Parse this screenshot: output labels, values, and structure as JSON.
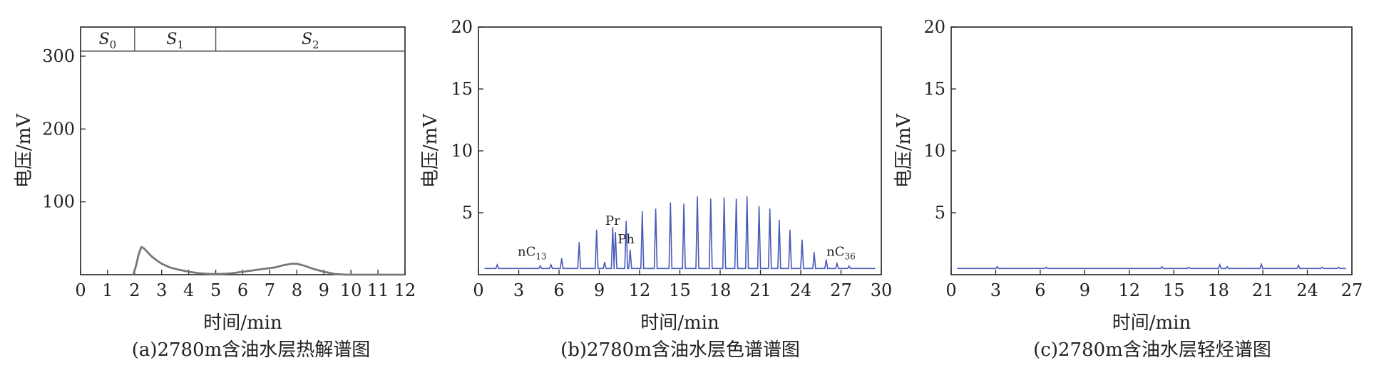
{
  "chart_data": [
    {
      "type": "line",
      "caption": "(a)2780m含油水层热解谱图",
      "xlabel": "时间/min",
      "ylabel": "电压/mV",
      "xlim": [
        0,
        12
      ],
      "ylim": [
        0,
        340
      ],
      "x_ticks": [
        "0",
        "1",
        "2",
        "3",
        "4",
        "5",
        "6",
        "7",
        "8",
        "9",
        "10",
        "11",
        "12"
      ],
      "y_ticks": [
        "100",
        "200",
        "300"
      ],
      "y_tick_values": [
        100,
        200,
        300
      ],
      "line_color": "#777777",
      "segments": [
        {
          "label": "S",
          "sub": "0",
          "start": 0,
          "end": 2
        },
        {
          "label": "S",
          "sub": "1",
          "start": 2,
          "end": 5
        },
        {
          "label": "S",
          "sub": "2",
          "start": 5,
          "end": 12
        }
      ],
      "segment_band": [
        307,
        340
      ],
      "series": [
        {
          "x": [
            1.95,
            2.05,
            2.15,
            2.25,
            2.35,
            2.45,
            2.6,
            2.8,
            3.0,
            3.3,
            3.6,
            4.0,
            4.4,
            4.8,
            5.2,
            5.6,
            6.0,
            6.4,
            6.8,
            7.2,
            7.5,
            7.8,
            8.0,
            8.3,
            8.6,
            9.0,
            9.4,
            9.8,
            10.2,
            10.6,
            11.0,
            11.5,
            11.9
          ],
          "y": [
            0,
            12,
            28,
            38,
            36,
            32,
            26,
            20,
            15,
            10,
            7,
            4,
            2,
            1,
            1,
            2,
            4,
            6,
            8,
            10,
            13,
            15,
            15,
            12,
            8,
            4,
            1,
            0,
            0,
            0,
            0,
            0,
            0
          ]
        }
      ]
    },
    {
      "type": "line",
      "caption": "(b)2780m含油水层色谱谱图",
      "xlabel": "时间/min",
      "ylabel": "电压/mV",
      "xlim": [
        0,
        30
      ],
      "ylim": [
        0,
        20
      ],
      "x_ticks": [
        "0",
        "3",
        "6",
        "9",
        "12",
        "15",
        "18",
        "21",
        "24",
        "27",
        "30"
      ],
      "y_ticks": [
        "5",
        "10",
        "15",
        "20"
      ],
      "y_tick_values": [
        5,
        10,
        15,
        20
      ],
      "line_color": "#4a5ab8",
      "baseline": 0.5,
      "peaks": [
        {
          "x": 1.4,
          "y": 0.8
        },
        {
          "x": 4.6,
          "y": 0.7
        },
        {
          "x": 5.4,
          "y": 0.8
        },
        {
          "x": 6.2,
          "y": 1.3
        },
        {
          "x": 7.5,
          "y": 2.6
        },
        {
          "x": 8.8,
          "y": 3.6
        },
        {
          "x": 9.4,
          "y": 1.0
        },
        {
          "x": 10.0,
          "y": 3.8
        },
        {
          "x": 10.2,
          "y": 3.4
        },
        {
          "x": 11.0,
          "y": 4.3
        },
        {
          "x": 11.3,
          "y": 2.0
        },
        {
          "x": 12.2,
          "y": 5.1
        },
        {
          "x": 13.2,
          "y": 5.3
        },
        {
          "x": 14.3,
          "y": 5.8
        },
        {
          "x": 15.3,
          "y": 5.7
        },
        {
          "x": 16.3,
          "y": 6.3
        },
        {
          "x": 17.3,
          "y": 6.1
        },
        {
          "x": 18.3,
          "y": 6.2
        },
        {
          "x": 19.2,
          "y": 6.1
        },
        {
          "x": 20.0,
          "y": 6.3
        },
        {
          "x": 20.9,
          "y": 5.5
        },
        {
          "x": 21.7,
          "y": 5.3
        },
        {
          "x": 22.4,
          "y": 4.4
        },
        {
          "x": 23.2,
          "y": 3.6
        },
        {
          "x": 24.1,
          "y": 2.8
        },
        {
          "x": 25.0,
          "y": 1.8
        },
        {
          "x": 25.9,
          "y": 1.2
        },
        {
          "x": 26.7,
          "y": 0.9
        },
        {
          "x": 27.6,
          "y": 0.7
        }
      ],
      "annotations": [
        {
          "text": "nC",
          "sub": "13",
          "x": 4.0,
          "y": 1.3
        },
        {
          "text": "Pr",
          "x": 10.0,
          "y": 3.8
        },
        {
          "text": "Ph",
          "x": 11.0,
          "y": 2.3
        },
        {
          "text": "nC",
          "sub": "36",
          "x": 27.0,
          "y": 1.3
        }
      ]
    },
    {
      "type": "line",
      "caption": "(c)2780m含油水层轻烃谱图",
      "xlabel": "时间/min",
      "ylabel": "电压/mV",
      "xlim": [
        0,
        27
      ],
      "ylim": [
        0,
        20
      ],
      "x_ticks": [
        "0",
        "3",
        "6",
        "9",
        "12",
        "15",
        "18",
        "21",
        "24",
        "27"
      ],
      "y_ticks": [
        "5",
        "10",
        "15",
        "20"
      ],
      "y_tick_values": [
        5,
        10,
        15,
        20
      ],
      "line_color": "#4a5ab8",
      "baseline": 0.5,
      "peaks": [
        {
          "x": 3.1,
          "y": 0.65
        },
        {
          "x": 6.4,
          "y": 0.6
        },
        {
          "x": 14.2,
          "y": 0.65
        },
        {
          "x": 16.0,
          "y": 0.6
        },
        {
          "x": 18.1,
          "y": 0.8
        },
        {
          "x": 18.6,
          "y": 0.65
        },
        {
          "x": 20.9,
          "y": 0.85
        },
        {
          "x": 23.4,
          "y": 0.75
        },
        {
          "x": 25.0,
          "y": 0.6
        },
        {
          "x": 26.1,
          "y": 0.6
        }
      ]
    }
  ]
}
